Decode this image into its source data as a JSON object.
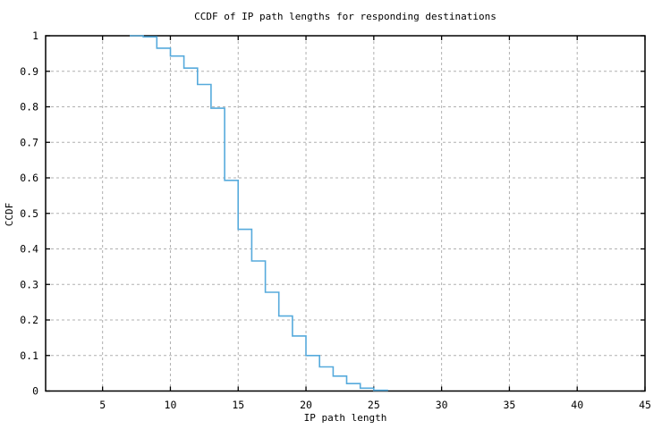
{
  "page": {
    "background": "#ffffff"
  },
  "colors": {
    "axis": "#000000",
    "grid": "#b0b0b0",
    "text": "#000000",
    "curve": "#56aadc",
    "background": "#ffffff"
  },
  "chart_data": {
    "type": "line",
    "style": "step-post",
    "title": "CCDF of IP path lengths for responding destinations",
    "xlabel": "IP path length",
    "ylabel": "CCDF",
    "xlim": [
      0.8,
      45
    ],
    "ylim": [
      0,
      1
    ],
    "x_ticks": [
      5,
      10,
      15,
      20,
      25,
      30,
      35,
      40,
      45
    ],
    "y_ticks": [
      0,
      0.1,
      0.2,
      0.3,
      0.4,
      0.5,
      0.6,
      0.7,
      0.8,
      0.9,
      1
    ],
    "grid": true,
    "grid_style": "dashed",
    "legend_position": "none",
    "frame": "full-box-with-inward-mirrored-ticks",
    "series": [
      {
        "name": "CCDF of IP path lengths",
        "color": "#56aadc",
        "points": [
          [
            7,
            1.0
          ],
          [
            8,
            0.997
          ],
          [
            9,
            0.965
          ],
          [
            10,
            0.943
          ],
          [
            11,
            0.909
          ],
          [
            12,
            0.863
          ],
          [
            13,
            0.796
          ],
          [
            14,
            0.593
          ],
          [
            15,
            0.455
          ],
          [
            16,
            0.366
          ],
          [
            17,
            0.278
          ],
          [
            18,
            0.211
          ],
          [
            19,
            0.155
          ],
          [
            20,
            0.1
          ],
          [
            21,
            0.068
          ],
          [
            22,
            0.042
          ],
          [
            23,
            0.021
          ],
          [
            24,
            0.008
          ],
          [
            25,
            0.002
          ],
          [
            26,
            0.0
          ]
        ]
      }
    ]
  }
}
